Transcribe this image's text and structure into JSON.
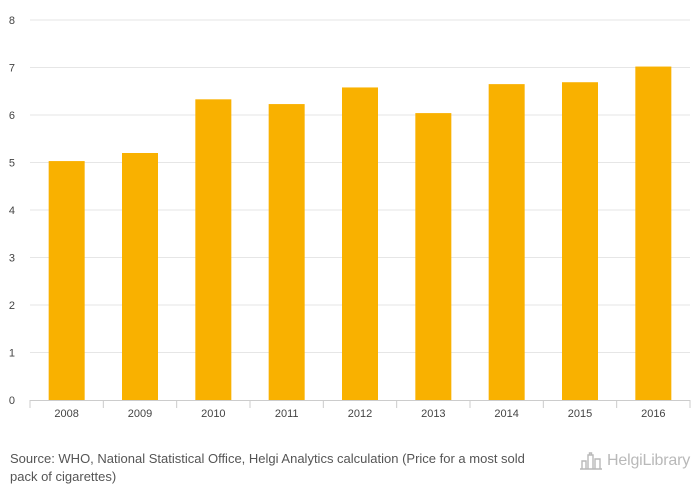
{
  "chart_data": {
    "type": "bar",
    "categories": [
      "2008",
      "2009",
      "2010",
      "2011",
      "2012",
      "2013",
      "2014",
      "2015",
      "2016"
    ],
    "values": [
      5.03,
      5.2,
      6.33,
      6.23,
      6.58,
      6.04,
      6.65,
      6.69,
      7.02
    ],
    "title": "",
    "xlabel": "",
    "ylabel": "",
    "ylim": [
      0,
      8
    ],
    "yticks": [
      0,
      1,
      2,
      3,
      4,
      5,
      6,
      7,
      8
    ],
    "grid": true,
    "legend": "none",
    "bar_color": "#f9b100"
  },
  "footer": {
    "source": "Source: WHO, National Statistical Office, Helgi Analytics calculation (Price for a most sold pack of cigarettes)",
    "brand_text": "HelgiLibrary",
    "brand_icon": "city-skyline-icon"
  },
  "colors": {
    "grid": "#e6e6e6",
    "axis": "#cccccc",
    "tick_text": "#444444",
    "brand": "#b9b9b9"
  }
}
